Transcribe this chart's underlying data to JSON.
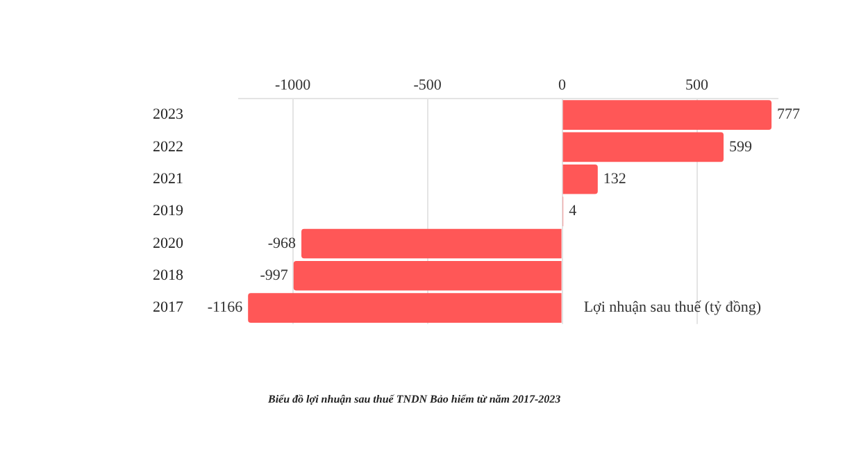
{
  "chart_data": {
    "type": "bar",
    "orientation": "horizontal",
    "xlabel": "Lợi nhuận sau thuế (tỷ đồng)",
    "categories": [
      "2023",
      "2022",
      "2021",
      "2019",
      "2020",
      "2018",
      "2017"
    ],
    "series": [
      {
        "color": "#ff5757",
        "values": [
          777,
          599,
          132,
          4,
          -968,
          -997,
          -1166
        ]
      }
    ],
    "xlim": [
      -1200,
      800
    ],
    "xticks": [
      -1000,
      -500,
      0,
      500
    ],
    "grid": "x",
    "data_labels": true,
    "legend": false,
    "annotations": [
      "Biểu đồ lợi nhuận sau thuế TNDN Bảo hiểm từ năm 2017-2023"
    ]
  }
}
